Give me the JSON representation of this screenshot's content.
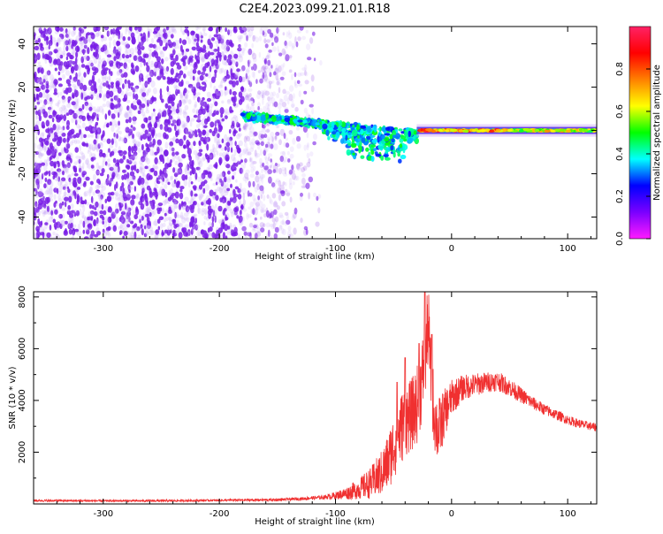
{
  "title": "C2E4.2023.099.21.01.R18",
  "colors": {
    "axis": "#000000",
    "snr_line": "#f03030",
    "spectrogram_noise": "#7a1ee6"
  },
  "chart_data": [
    {
      "type": "heatmap",
      "name": "spectrogram",
      "xlabel": "Height of straight line (km)",
      "ylabel": "Frequency (Hz)",
      "xlim": [
        -360,
        125
      ],
      "ylim": [
        -50,
        48
      ],
      "xticks": [
        -300,
        -200,
        -100,
        0,
        100
      ],
      "yticks": [
        -40,
        -20,
        0,
        20,
        40
      ],
      "features": {
        "broadband_noise_region_km": [
          -360,
          -120
        ],
        "dense_noise_until_km": -180,
        "transition_region_km": [
          -180,
          -30
        ],
        "transition_center_hz": [
          8,
          0
        ],
        "narrowband_carrier_region_km": [
          -30,
          125
        ],
        "carrier_frequency_hz": 0
      },
      "colorbar": {
        "label": "Normalized spectral amplitude",
        "range": [
          0,
          1
        ],
        "ticks": [
          0.0,
          0.2,
          0.4,
          0.6,
          0.8
        ],
        "colors": [
          "#ff1aff",
          "#7a00ff",
          "#0000ff",
          "#00ffff",
          "#00ff00",
          "#ffff00",
          "#ff8000",
          "#ff0000",
          "#ff2266"
        ]
      }
    },
    {
      "type": "line",
      "name": "snr",
      "xlabel": "Height of straight line (km)",
      "ylabel": "SNR (10 * v/v)",
      "xlim": [
        -360,
        125
      ],
      "ylim": [
        0,
        8200
      ],
      "xticks": [
        -300,
        -200,
        -100,
        0,
        100
      ],
      "yticks": [
        2000,
        4000,
        6000,
        8000
      ],
      "series": [
        {
          "x": [
            -360,
            -300,
            -250,
            -200,
            -150,
            -130,
            -110,
            -100,
            -90,
            -80,
            -70,
            -60,
            -55,
            -50,
            -45,
            -40,
            -35,
            -30,
            -26,
            -22,
            -20,
            -18,
            -15,
            -12,
            -10,
            -5,
            0,
            10,
            20,
            30,
            40,
            50,
            60,
            70,
            80,
            90,
            100,
            110,
            125
          ],
          "y": [
            130,
            120,
            120,
            140,
            160,
            200,
            260,
            320,
            420,
            580,
            800,
            1200,
            1600,
            2200,
            2800,
            3200,
            3400,
            3800,
            4600,
            6000,
            7000,
            5000,
            3500,
            2800,
            3000,
            3600,
            4100,
            4500,
            4600,
            4700,
            4750,
            4500,
            4200,
            3900,
            3650,
            3450,
            3250,
            3100,
            2950
          ],
          "noise_amplitude": [
            40,
            40,
            40,
            40,
            50,
            60,
            80,
            150,
            250,
            400,
            600,
            900,
            1100,
            1300,
            1400,
            1400,
            1400,
            1500,
            1600,
            1700,
            1500,
            1400,
            1400,
            1300,
            1200,
            900,
            700,
            500,
            450,
            400,
            380,
            350,
            300,
            250,
            220,
            200,
            180,
            170,
            160
          ],
          "spikes": [
            {
              "x": -23,
              "y": 8200
            },
            {
              "x": -17,
              "y": 6550
            },
            {
              "x": -28,
              "y": 6200
            },
            {
              "x": -40,
              "y": 5650
            },
            {
              "x": -47,
              "y": 4700
            }
          ]
        }
      ]
    }
  ]
}
